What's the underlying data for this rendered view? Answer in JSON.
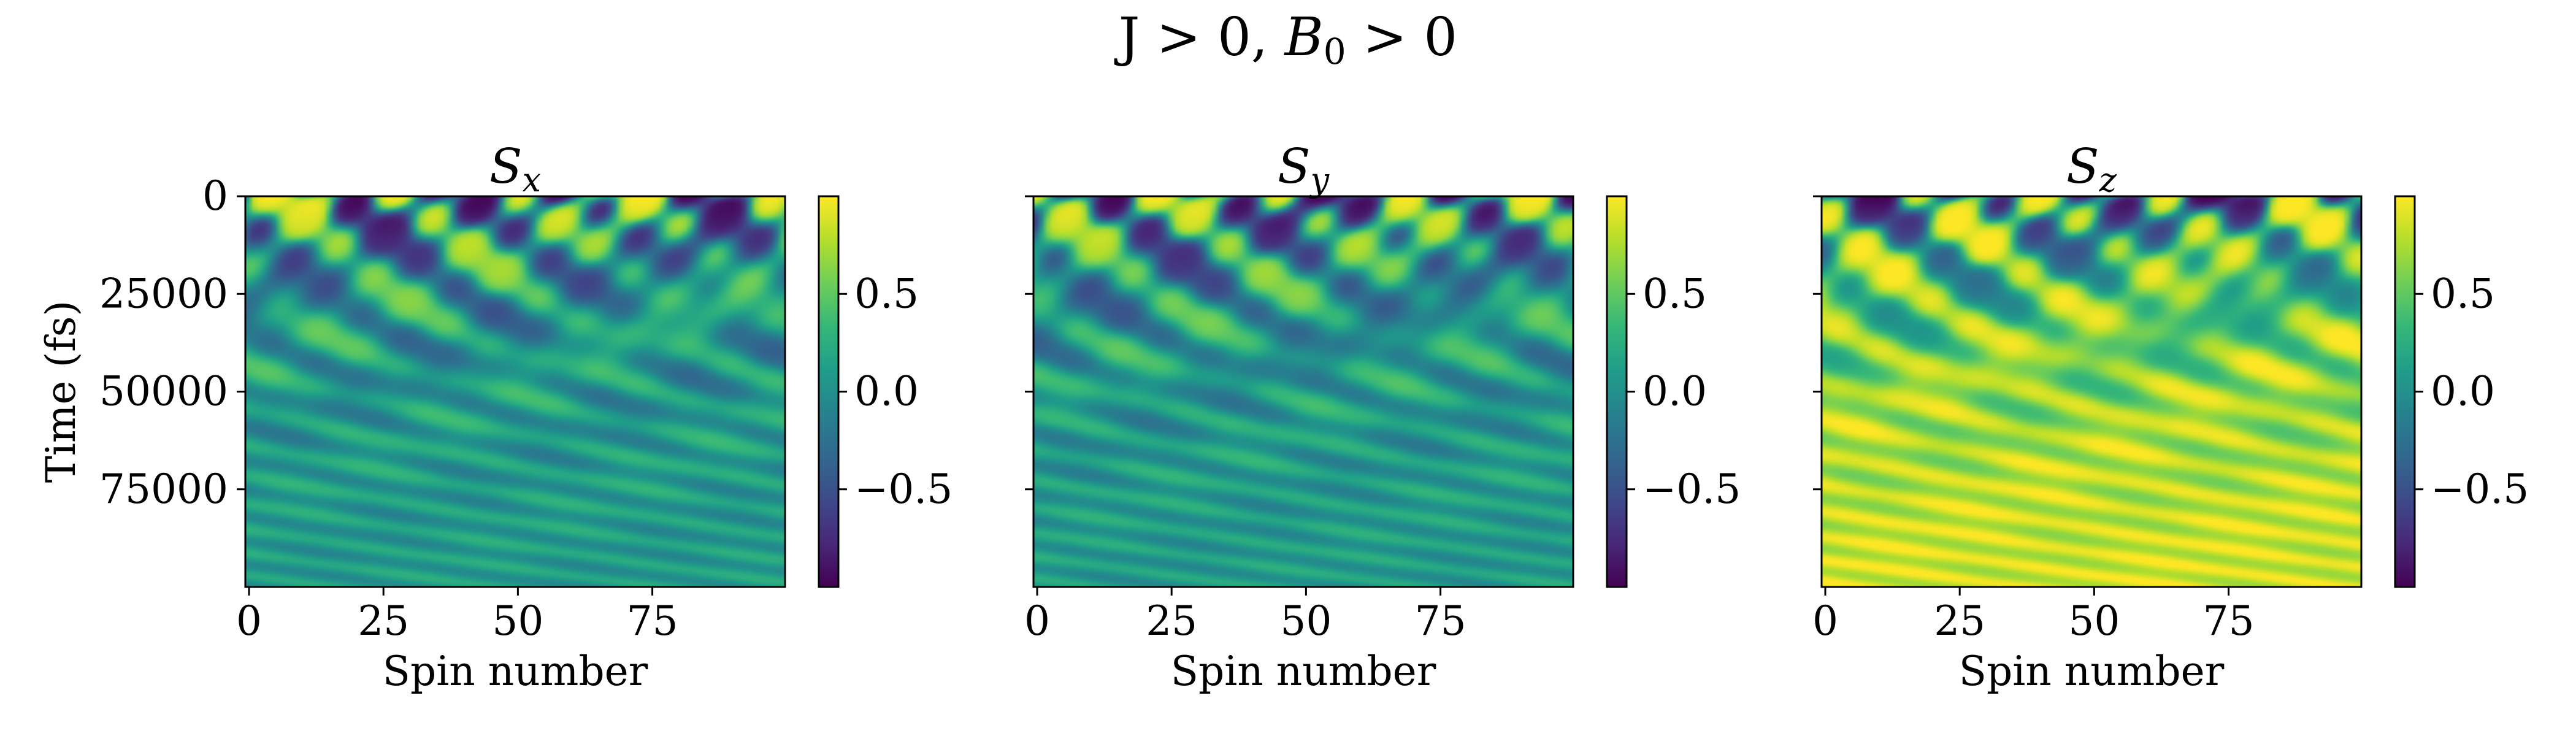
{
  "figure": {
    "suptitle_pre": "J > 0, ",
    "suptitle_var": "B",
    "suptitle_sub": "0",
    "suptitle_post": " > 0"
  },
  "colormap": {
    "name": "viridis",
    "stops": [
      "#440154",
      "#482878",
      "#3e4989",
      "#31688e",
      "#26828e",
      "#1f9e89",
      "#35b779",
      "#6ece58",
      "#b5de2b",
      "#fde725"
    ]
  },
  "chart_data": [
    {
      "type": "heatmap",
      "title_base": "S",
      "title_sub": "x",
      "xlabel": "Spin number",
      "ylabel": "Time (fs)",
      "x_range": [
        0,
        99
      ],
      "y_range": [
        0,
        100000
      ],
      "y_inverted": true,
      "xticks": [
        0,
        25,
        50,
        75
      ],
      "yticks": [
        0,
        25000,
        50000,
        75000
      ],
      "ytick_labels": [
        "0",
        "25000",
        "50000",
        "75000"
      ],
      "color_range": [
        -1,
        1
      ],
      "colorbar_ticks": [
        0.5,
        0.0,
        -0.5
      ],
      "colorbar_labels": [
        "0.5",
        "0.0",
        "−0.5"
      ],
      "late_value": 0.1,
      "pattern_seed": 1
    },
    {
      "type": "heatmap",
      "title_base": "S",
      "title_sub": "y",
      "xlabel": "Spin number",
      "ylabel": "",
      "x_range": [
        0,
        99
      ],
      "y_range": [
        0,
        100000
      ],
      "y_inverted": true,
      "xticks": [
        0,
        25,
        50,
        75
      ],
      "yticks": [
        0,
        25000,
        50000,
        75000
      ],
      "ytick_labels": [],
      "color_range": [
        -1,
        1
      ],
      "colorbar_ticks": [
        0.5,
        0.0,
        -0.5
      ],
      "colorbar_labels": [
        "0.5",
        "0.0",
        "−0.5"
      ],
      "late_value": 0.1,
      "pattern_seed": 2
    },
    {
      "type": "heatmap",
      "title_base": "S",
      "title_sub": "z",
      "xlabel": "Spin number",
      "ylabel": "",
      "x_range": [
        0,
        99
      ],
      "y_range": [
        0,
        100000
      ],
      "y_inverted": true,
      "xticks": [
        0,
        25,
        50,
        75
      ],
      "yticks": [
        0,
        25000,
        50000,
        75000
      ],
      "ytick_labels": [],
      "color_range": [
        -1,
        1
      ],
      "colorbar_ticks": [
        0.5,
        0.0,
        -0.5
      ],
      "colorbar_labels": [
        "0.5",
        "0.0",
        "−0.5"
      ],
      "late_value": 0.95,
      "pattern_seed": 3
    }
  ]
}
